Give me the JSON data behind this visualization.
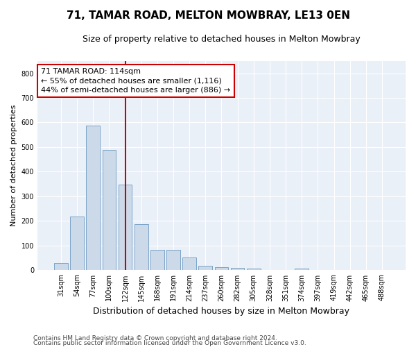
{
  "title": "71, TAMAR ROAD, MELTON MOWBRAY, LE13 0EN",
  "subtitle": "Size of property relative to detached houses in Melton Mowbray",
  "xlabel": "Distribution of detached houses by size in Melton Mowbray",
  "ylabel": "Number of detached properties",
  "categories": [
    "31sqm",
    "54sqm",
    "77sqm",
    "100sqm",
    "122sqm",
    "145sqm",
    "168sqm",
    "191sqm",
    "214sqm",
    "237sqm",
    "260sqm",
    "282sqm",
    "305sqm",
    "328sqm",
    "351sqm",
    "374sqm",
    "397sqm",
    "419sqm",
    "442sqm",
    "465sqm",
    "488sqm"
  ],
  "values": [
    30,
    218,
    587,
    490,
    348,
    188,
    82,
    82,
    52,
    17,
    13,
    10,
    7,
    0,
    0,
    7,
    0,
    0,
    0,
    0,
    0
  ],
  "bar_color": "#ccd9e8",
  "bar_edge_color": "#7ba3c8",
  "vline_x": 4.0,
  "vline_color": "#cc0000",
  "annotation_text": "71 TAMAR ROAD: 114sqm\n← 55% of detached houses are smaller (1,116)\n44% of semi-detached houses are larger (886) →",
  "annotation_box_color": "#ffffff",
  "annotation_box_edge_color": "#cc0000",
  "ylim": [
    0,
    850
  ],
  "yticks": [
    0,
    100,
    200,
    300,
    400,
    500,
    600,
    700,
    800
  ],
  "footnote1": "Contains HM Land Registry data © Crown copyright and database right 2024.",
  "footnote2": "Contains public sector information licensed under the Open Government Licence v3.0.",
  "figsize": [
    6.0,
    5.0
  ],
  "dpi": 100,
  "title_fontsize": 11,
  "subtitle_fontsize": 9,
  "xlabel_fontsize": 9,
  "ylabel_fontsize": 8,
  "tick_fontsize": 7,
  "annotation_fontsize": 8,
  "footnote_fontsize": 6.5
}
